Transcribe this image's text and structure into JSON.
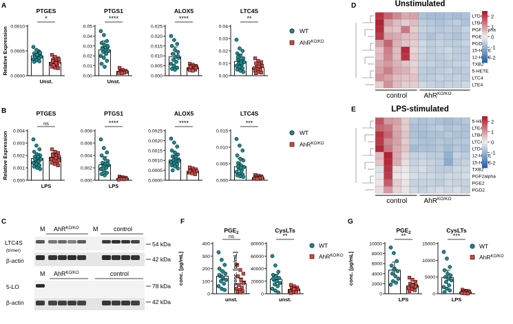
{
  "colors": {
    "wt": "#1b8a8f",
    "ahr": "#d04a46",
    "axis": "#000000",
    "text": "#000000"
  },
  "panel_letters": [
    "A",
    "B",
    "C",
    "D",
    "E",
    "F",
    "G"
  ],
  "legend_ab": {
    "wt": "WT",
    "ahr_base": "AhR",
    "ahr_sup": "KO/KO"
  },
  "legend_fg": {
    "wt": "WT",
    "ahr_base": "AhR",
    "ahr_sup": "KO/KO"
  },
  "chart_data": [
    {
      "id": "A1",
      "type": "bar",
      "title": "PTGES",
      "ylabel": "Relative Expression",
      "xlabel": "Unst.",
      "ylim": [
        0,
        0.001
      ],
      "ticks": [
        "0.0000",
        "0.0005",
        "0.0010"
      ],
      "tick_values": [
        0,
        0.0005,
        0.001
      ],
      "sig": "*",
      "means": [
        0.0004,
        0.00027
      ],
      "errs": [
        0.00012,
        0.0001
      ],
      "wt_points": [
        0.00058,
        0.00052,
        0.00048,
        0.00045,
        0.00043,
        0.00041,
        0.0004,
        0.00039,
        0.00038,
        0.00036,
        0.00035,
        0.00033,
        0.00031,
        0.00029,
        0.00028,
        0.00042,
        0.00046,
        0.00037
      ],
      "ahr_points": [
        0.00042,
        0.00038,
        0.00035,
        0.00032,
        0.0003,
        0.00028,
        0.00027,
        0.00026,
        0.00024,
        0.00022,
        0.0002,
        0.00018,
        0.00016,
        0.00015,
        0.00029,
        0.00025,
        0.00033,
        0.00021
      ]
    },
    {
      "id": "A2",
      "type": "bar",
      "title": "PTGS1",
      "ylabel": "",
      "xlabel": "Unst.",
      "ylim": [
        0,
        0.05
      ],
      "ticks": [
        "0.00",
        "0.01",
        "0.02",
        "0.03",
        "0.04",
        "0.05"
      ],
      "tick_values": [
        0,
        0.01,
        0.02,
        0.03,
        0.04,
        0.05
      ],
      "sig": "****",
      "means": [
        0.026,
        0.0045
      ],
      "errs": [
        0.009,
        0.0015
      ],
      "wt_points": [
        0.045,
        0.041,
        0.035,
        0.033,
        0.031,
        0.029,
        0.028,
        0.026,
        0.025,
        0.024,
        0.022,
        0.02,
        0.018,
        0.015,
        0.012,
        0.009,
        0.03,
        0.027
      ],
      "ahr_points": [
        0.008,
        0.006,
        0.005,
        0.0045,
        0.004,
        0.0038,
        0.0035,
        0.003,
        0.0028,
        0.0025
      ]
    },
    {
      "id": "A3",
      "type": "bar",
      "title": "ALOX5",
      "ylabel": "",
      "xlabel": "",
      "ylim": [
        0,
        0.025
      ],
      "ticks": [
        "0.000",
        "0.005",
        "0.010",
        "0.015",
        "0.020",
        "0.025"
      ],
      "tick_values": [
        0,
        0.005,
        0.01,
        0.015,
        0.02,
        0.025
      ],
      "sig": "****",
      "means": [
        0.0095,
        0.004
      ],
      "errs": [
        0.005,
        0.001
      ],
      "wt_points": [
        0.02,
        0.018,
        0.016,
        0.015,
        0.013,
        0.012,
        0.011,
        0.0095,
        0.009,
        0.008,
        0.007,
        0.006,
        0.005,
        0.004,
        0.0035,
        0.003,
        0.01
      ],
      "ahr_points": [
        0.006,
        0.0055,
        0.005,
        0.0048,
        0.0045,
        0.0042,
        0.004,
        0.0038,
        0.0035,
        0.0032,
        0.003,
        0.0028,
        0.0025,
        0.004,
        0.0044
      ]
    },
    {
      "id": "A4",
      "type": "bar",
      "title": "LTC4S",
      "ylabel": "",
      "xlabel": "",
      "ylim": [
        0,
        0.04
      ],
      "ticks": [
        "0.00",
        "0.01",
        "0.02",
        "0.03",
        "0.04"
      ],
      "tick_values": [
        0,
        0.01,
        0.02,
        0.03,
        0.04
      ],
      "sig": "**",
      "means": [
        0.0115,
        0.0065
      ],
      "errs": [
        0.006,
        0.003
      ],
      "wt_points": [
        0.029,
        0.022,
        0.02,
        0.018,
        0.016,
        0.014,
        0.013,
        0.012,
        0.011,
        0.01,
        0.009,
        0.008,
        0.007,
        0.006,
        0.005,
        0.004,
        0.003,
        0.015,
        0.0105
      ],
      "ahr_points": [
        0.014,
        0.012,
        0.011,
        0.01,
        0.009,
        0.008,
        0.007,
        0.0065,
        0.006,
        0.005,
        0.0045,
        0.004,
        0.003,
        0.0025,
        0.002,
        0.0075
      ]
    },
    {
      "id": "B1",
      "type": "bar",
      "title": "PTGES",
      "ylabel": "Relative Expression",
      "xlabel": "LPS",
      "ylim": [
        0,
        0.004
      ],
      "ticks": [
        "0.000",
        "0.001",
        "0.002",
        "0.003",
        "0.004"
      ],
      "tick_values": [
        0,
        0.001,
        0.002,
        0.003,
        0.004
      ],
      "sig": "ns",
      "means": [
        0.00175,
        0.00185
      ],
      "errs": [
        0.0004,
        0.0003
      ],
      "wt_points": [
        0.0033,
        0.0028,
        0.0025,
        0.0023,
        0.0021,
        0.002,
        0.0019,
        0.0018,
        0.0017,
        0.0016,
        0.0015,
        0.0014,
        0.0013,
        0.0012,
        0.0011,
        0.001,
        0.0009,
        0.0017,
        0.0019
      ],
      "ahr_points": [
        0.0025,
        0.0023,
        0.0022,
        0.0021,
        0.002,
        0.0019,
        0.0019,
        0.0018,
        0.0017,
        0.0016,
        0.0015,
        0.0014,
        0.0013,
        0.0012,
        0.002,
        0.0018,
        0.0016
      ]
    },
    {
      "id": "B2",
      "type": "bar",
      "title": "PTGS1",
      "ylabel": "",
      "xlabel": "LPS",
      "ylim": [
        0,
        0.008
      ],
      "ticks": [
        "0.000",
        "0.002",
        "0.004",
        "0.006",
        "0.008"
      ],
      "tick_values": [
        0,
        0.002,
        0.004,
        0.006,
        0.008
      ],
      "sig": "****",
      "means": [
        0.0025,
        0.0003
      ],
      "errs": [
        0.0013,
        0.0001
      ],
      "wt_points": [
        0.0066,
        0.0052,
        0.0045,
        0.004,
        0.0035,
        0.0031,
        0.0028,
        0.0026,
        0.0024,
        0.0022,
        0.002,
        0.0018,
        0.0015,
        0.0012,
        0.001,
        0.0008,
        0.0027
      ],
      "ahr_points": [
        0.0006,
        0.0005,
        0.0004,
        0.00035,
        0.0003,
        0.00025,
        0.0002,
        0.00015,
        0.0001
      ]
    },
    {
      "id": "B3",
      "type": "bar",
      "title": "ALOX5",
      "ylabel": "",
      "xlabel": "",
      "ylim": [
        0,
        0.0025
      ],
      "ticks": [
        "0.0000",
        "0.0005",
        "0.0010",
        "0.0015",
        "0.0020",
        "0.0025"
      ],
      "tick_values": [
        0,
        0.0005,
        0.001,
        0.0015,
        0.002,
        0.0025
      ],
      "sig": "****",
      "means": [
        0.00102,
        0.00045
      ],
      "errs": [
        0.00025,
        0.0001
      ],
      "wt_points": [
        0.0021,
        0.0019,
        0.0017,
        0.0015,
        0.0014,
        0.0013,
        0.0012,
        0.0011,
        0.00105,
        0.001,
        0.00095,
        0.0009,
        0.00085,
        0.0008,
        0.00075,
        0.0007,
        0.0006,
        0.0005,
        0.0012,
        0.00098
      ],
      "ahr_points": [
        0.00065,
        0.0006,
        0.00055,
        0.0005,
        0.00048,
        0.00045,
        0.00042,
        0.0004,
        0.00038,
        0.00035,
        0.0003,
        0.00047
      ]
    },
    {
      "id": "B4",
      "type": "bar",
      "title": "LTC4S",
      "ylabel": "",
      "xlabel": "",
      "ylim": [
        0,
        0.015
      ],
      "ticks": [
        "0.000",
        "0.005",
        "0.010",
        "0.015"
      ],
      "tick_values": [
        0,
        0.005,
        0.01,
        0.015
      ],
      "sig": "***",
      "means": [
        0.0041,
        0.0008
      ],
      "errs": [
        0.0025,
        0.0004
      ],
      "wt_points": [
        0.0125,
        0.0105,
        0.009,
        0.0075,
        0.0065,
        0.006,
        0.0052,
        0.0045,
        0.004,
        0.0035,
        0.003,
        0.0025,
        0.002,
        0.0018,
        0.0015,
        0.0012,
        0.001,
        0.0042,
        0.0038
      ],
      "ahr_points": [
        0.0016,
        0.0014,
        0.0012,
        0.001,
        0.0009,
        0.0008,
        0.0007,
        0.0006,
        0.0005,
        0.0004
      ]
    },
    {
      "id": "F1",
      "type": "bar",
      "title": "PGE",
      "title_sub": "2",
      "ylabel": "conc. [pg/mL]",
      "xlabel": "unst.",
      "ylim": [
        0,
        400
      ],
      "ticks": [
        "0",
        "100",
        "200",
        "300",
        "400"
      ],
      "tick_values": [
        0,
        100,
        200,
        300,
        400
      ],
      "sig": "ns",
      "means": [
        140,
        80
      ],
      "errs": [
        40,
        45
      ],
      "wt_points": [
        330,
        270,
        230,
        200,
        180,
        160,
        140,
        120,
        110,
        100,
        80,
        60,
        40,
        30,
        150,
        130
      ],
      "ahr_points": [
        230,
        190,
        160,
        140,
        110,
        90,
        70,
        50,
        40,
        30,
        20,
        15,
        10,
        85
      ]
    },
    {
      "id": "F2",
      "type": "bar",
      "title": "CysLTs",
      "ylabel": "conc. [pg/mL]",
      "xlabel": "unst.",
      "ylim": [
        0,
        80000
      ],
      "ticks": [
        "0",
        "20000",
        "40000",
        "60000",
        "80000"
      ],
      "tick_values": [
        0,
        20000,
        40000,
        60000,
        80000
      ],
      "sig": "**",
      "means": [
        23000,
        7000
      ],
      "errs": [
        8000,
        2000
      ],
      "wt_points": [
        60000,
        45000,
        35000,
        30000,
        28000,
        25000,
        22000,
        20000,
        17000,
        15000,
        12000,
        8000,
        5000,
        2000,
        24000
      ],
      "ahr_points": [
        14000,
        12000,
        10000,
        9000,
        8000,
        7000,
        6000,
        5000,
        4000,
        3000,
        2000,
        1000,
        7500
      ]
    },
    {
      "id": "G1",
      "type": "bar",
      "title": "PGE",
      "title_sub": "2",
      "ylabel": "conc. [pg/mL]",
      "xlabel": "LPS",
      "ylim": [
        0,
        10000
      ],
      "ticks": [
        "0",
        "2000",
        "4000",
        "6000",
        "8000",
        "10000"
      ],
      "tick_values": [
        0,
        2000,
        4000,
        6000,
        8000,
        10000
      ],
      "sig": "**",
      "means": [
        4700,
        1600
      ],
      "errs": [
        1600,
        500
      ],
      "wt_points": [
        9200,
        8100,
        6500,
        5600,
        5000,
        4500,
        4000,
        3500,
        3000,
        2500,
        2200,
        1800,
        4800
      ],
      "ahr_points": [
        3200,
        2800,
        2400,
        2000,
        1800,
        1600,
        1500,
        1300,
        1100,
        900,
        700,
        500,
        1700,
        1400
      ]
    },
    {
      "id": "G2",
      "type": "bar",
      "title": "CysLTs",
      "ylabel": "",
      "xlabel": "LPS",
      "ylim": [
        0,
        15000
      ],
      "ticks": [
        "0",
        "5000",
        "10000",
        "15000"
      ],
      "tick_values": [
        0,
        5000,
        10000,
        15000
      ],
      "sig": "***",
      "means": [
        4800,
        500
      ],
      "errs": [
        2200,
        300
      ],
      "wt_points": [
        12500,
        10500,
        8000,
        7000,
        6000,
        5500,
        5000,
        4500,
        4000,
        3500,
        2500,
        2000,
        1500,
        1000,
        500
      ],
      "ahr_points": [
        1200,
        900,
        800,
        700,
        600,
        500,
        400,
        300,
        200,
        100,
        50
      ]
    }
  ],
  "heatmap_d": {
    "title": "Unstimulated",
    "rows": [
      "LTD4",
      "LTB4",
      "PGF2alpha",
      "PGE2",
      "PGD2",
      "15-HETE",
      "12-HETE",
      "TXB2",
      "5-HETE",
      "LTC4",
      "LTE4"
    ],
    "groups": {
      "control": "control",
      "ahr_base": "AhR",
      "ahr_sup": "KO/KO"
    },
    "scale_ticks": [
      "2",
      "1",
      "0",
      "-1",
      "-2"
    ],
    "scale_values": [
      2,
      1,
      0,
      -1,
      -2
    ],
    "values": [
      [
        2.2,
        1.6,
        1.2,
        0.8,
        0.9,
        -0.8,
        -0.9,
        -0.9,
        -0.8,
        -0.9,
        -0.8
      ],
      [
        2.4,
        0.9,
        0.6,
        0.4,
        0.6,
        -0.6,
        -0.7,
        -0.8,
        -0.7,
        -0.6,
        -0.8
      ],
      [
        2.3,
        0.6,
        0.5,
        1.4,
        0.4,
        -0.5,
        -0.6,
        -0.7,
        -0.6,
        -0.7,
        -0.5
      ],
      [
        2.1,
        0.9,
        0.8,
        0.6,
        0.5,
        -0.6,
        -0.8,
        -0.6,
        -0.7,
        -0.8,
        -0.6
      ],
      [
        0.9,
        1.6,
        0.7,
        0.5,
        0.4,
        -0.4,
        -0.6,
        -0.5,
        -0.6,
        -0.6,
        -0.5
      ],
      [
        0.5,
        1.3,
        0.6,
        2.3,
        0.3,
        -0.4,
        -0.6,
        -0.5,
        -0.4,
        -0.6,
        -0.6
      ],
      [
        0.6,
        1.2,
        0.6,
        2.2,
        0.4,
        -0.5,
        -0.6,
        -0.6,
        -0.5,
        -0.6,
        -0.6
      ],
      [
        0.8,
        1.0,
        0.7,
        0.5,
        0.3,
        -0.5,
        -0.5,
        -0.6,
        -0.6,
        -0.5,
        -0.5
      ],
      [
        0.9,
        1.3,
        0.8,
        0.7,
        0.4,
        -0.6,
        -0.7,
        -0.6,
        -0.5,
        -0.7,
        -0.6
      ],
      [
        1.1,
        0.9,
        0.6,
        0.5,
        0.5,
        -0.6,
        -0.6,
        -0.5,
        -0.6,
        -0.5,
        -0.6
      ],
      [
        0.4,
        1.1,
        0.6,
        0.4,
        0.4,
        -0.4,
        -0.5,
        -0.6,
        -0.5,
        -0.5,
        -0.4
      ]
    ]
  },
  "heatmap_e": {
    "title": "LPS-stimulated",
    "rows": [
      "5-HETE",
      "LTE4",
      "LTB4",
      "LTC4",
      "LTD4",
      "12-HETE",
      "15-HETE",
      "TXB2",
      "PGF2alpha",
      "PGE2",
      "PGD2"
    ],
    "groups": {
      "control": "control",
      "ahr_base": "AhR",
      "ahr_sup": "KO/KO"
    },
    "scale_ticks": [
      "2",
      "1",
      "0",
      "-1",
      "-2"
    ],
    "scale_values": [
      2,
      1,
      0,
      -1,
      -2
    ],
    "values": [
      [
        1.8,
        1.0,
        0.9,
        0.4,
        -0.7,
        -0.8,
        -0.7,
        -0.8,
        -0.9,
        -0.8,
        -0.7
      ],
      [
        1.6,
        1.4,
        0.8,
        0.4,
        -0.8,
        -0.8,
        -0.7,
        -0.6,
        -0.8,
        -0.7,
        -0.8
      ],
      [
        2.2,
        1.6,
        0.9,
        0.5,
        -0.8,
        -0.9,
        -0.8,
        -0.8,
        -0.7,
        -0.8,
        -0.8
      ],
      [
        2.1,
        1.2,
        0.9,
        0.4,
        -0.7,
        -0.8,
        -0.8,
        -0.7,
        -0.8,
        -0.7,
        -0.7
      ],
      [
        2.3,
        1.4,
        0.8,
        0.5,
        -0.9,
        -0.8,
        -0.8,
        -0.7,
        -0.9,
        -0.7,
        -0.8
      ],
      [
        0.6,
        2.4,
        0.8,
        0.3,
        -0.5,
        -0.5,
        -0.6,
        -0.6,
        -1.1,
        -0.5,
        -0.6
      ],
      [
        0.5,
        2.3,
        0.8,
        0.2,
        -0.5,
        -0.4,
        -0.5,
        -0.6,
        -1.2,
        -0.6,
        -0.5
      ],
      [
        -0.2,
        2.2,
        0.2,
        -0.1,
        -0.4,
        -0.3,
        -0.5,
        -0.6,
        -0.6,
        -0.4,
        -0.4
      ],
      [
        -0.1,
        2.1,
        0.1,
        0.0,
        -0.3,
        -0.4,
        -0.4,
        -0.5,
        -0.4,
        -0.4,
        -0.3
      ],
      [
        0.1,
        1.7,
        0.4,
        0.1,
        -0.5,
        -0.5,
        -0.5,
        -0.6,
        -0.4,
        -0.5,
        -0.5
      ],
      [
        0.2,
        1.0,
        0.3,
        0.1,
        -0.4,
        -0.5,
        -0.4,
        -0.3,
        -0.4,
        -0.3,
        -0.5
      ]
    ]
  },
  "blot": {
    "top_labels": {
      "m1": "M",
      "ahr_base": "AhR",
      "ahr_sup": "KO/KO",
      "m2": "M",
      "control": "control"
    },
    "row1_label": "LTC4S",
    "row1_sub": "(trimer)",
    "row1_kda": "54 kDa",
    "row2_label": "β-actin",
    "row2_kda": "42 kDa",
    "mid_labels": {
      "m": "M",
      "ahr_base": "AhR",
      "ahr_sup": "KO/KO",
      "control": "control"
    },
    "row3_label": "5-LO",
    "row3_kda": "78 kDa",
    "row4_label": "β-actin",
    "row4_kda": "42 kDa"
  }
}
